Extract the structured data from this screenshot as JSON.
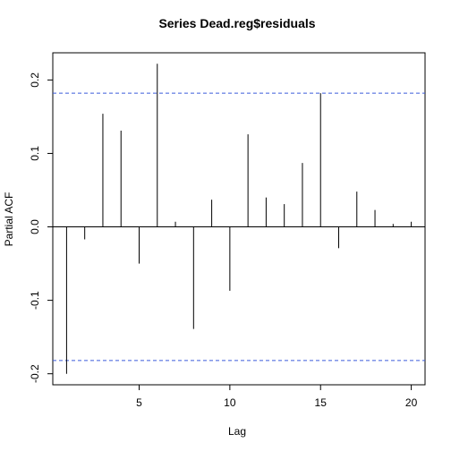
{
  "chart_data": {
    "type": "bar",
    "title": "Series  Dead.reg$residuals",
    "xlabel": "Lag",
    "ylabel": "Partial ACF",
    "x": [
      1,
      2,
      3,
      4,
      5,
      6,
      7,
      8,
      9,
      10,
      11,
      12,
      13,
      14,
      15,
      16,
      17,
      18,
      19,
      20
    ],
    "values": [
      -0.2,
      -0.017,
      0.154,
      0.131,
      -0.05,
      0.222,
      0.007,
      -0.139,
      0.037,
      -0.087,
      0.126,
      0.04,
      0.031,
      0.087,
      0.182,
      -0.029,
      0.048,
      0.023,
      0.004,
      0.007
    ],
    "xlim": [
      0.24,
      20.76
    ],
    "ylim": [
      -0.215,
      0.237
    ],
    "x_ticks": [
      5,
      10,
      15,
      20
    ],
    "x_tick_labels": [
      "5",
      "10",
      "15",
      "20"
    ],
    "y_ticks": [
      -0.2,
      -0.1,
      0.0,
      0.1,
      0.2
    ],
    "y_tick_labels": [
      "-0.2",
      "-0.1",
      "0.0",
      "0.1",
      "0.2"
    ],
    "confidence_bound": 0.182,
    "colors": {
      "bars": "#000000",
      "confidence": "#3b5bdb",
      "zero_line": "#000000",
      "box": "#000000"
    },
    "grid": false
  }
}
